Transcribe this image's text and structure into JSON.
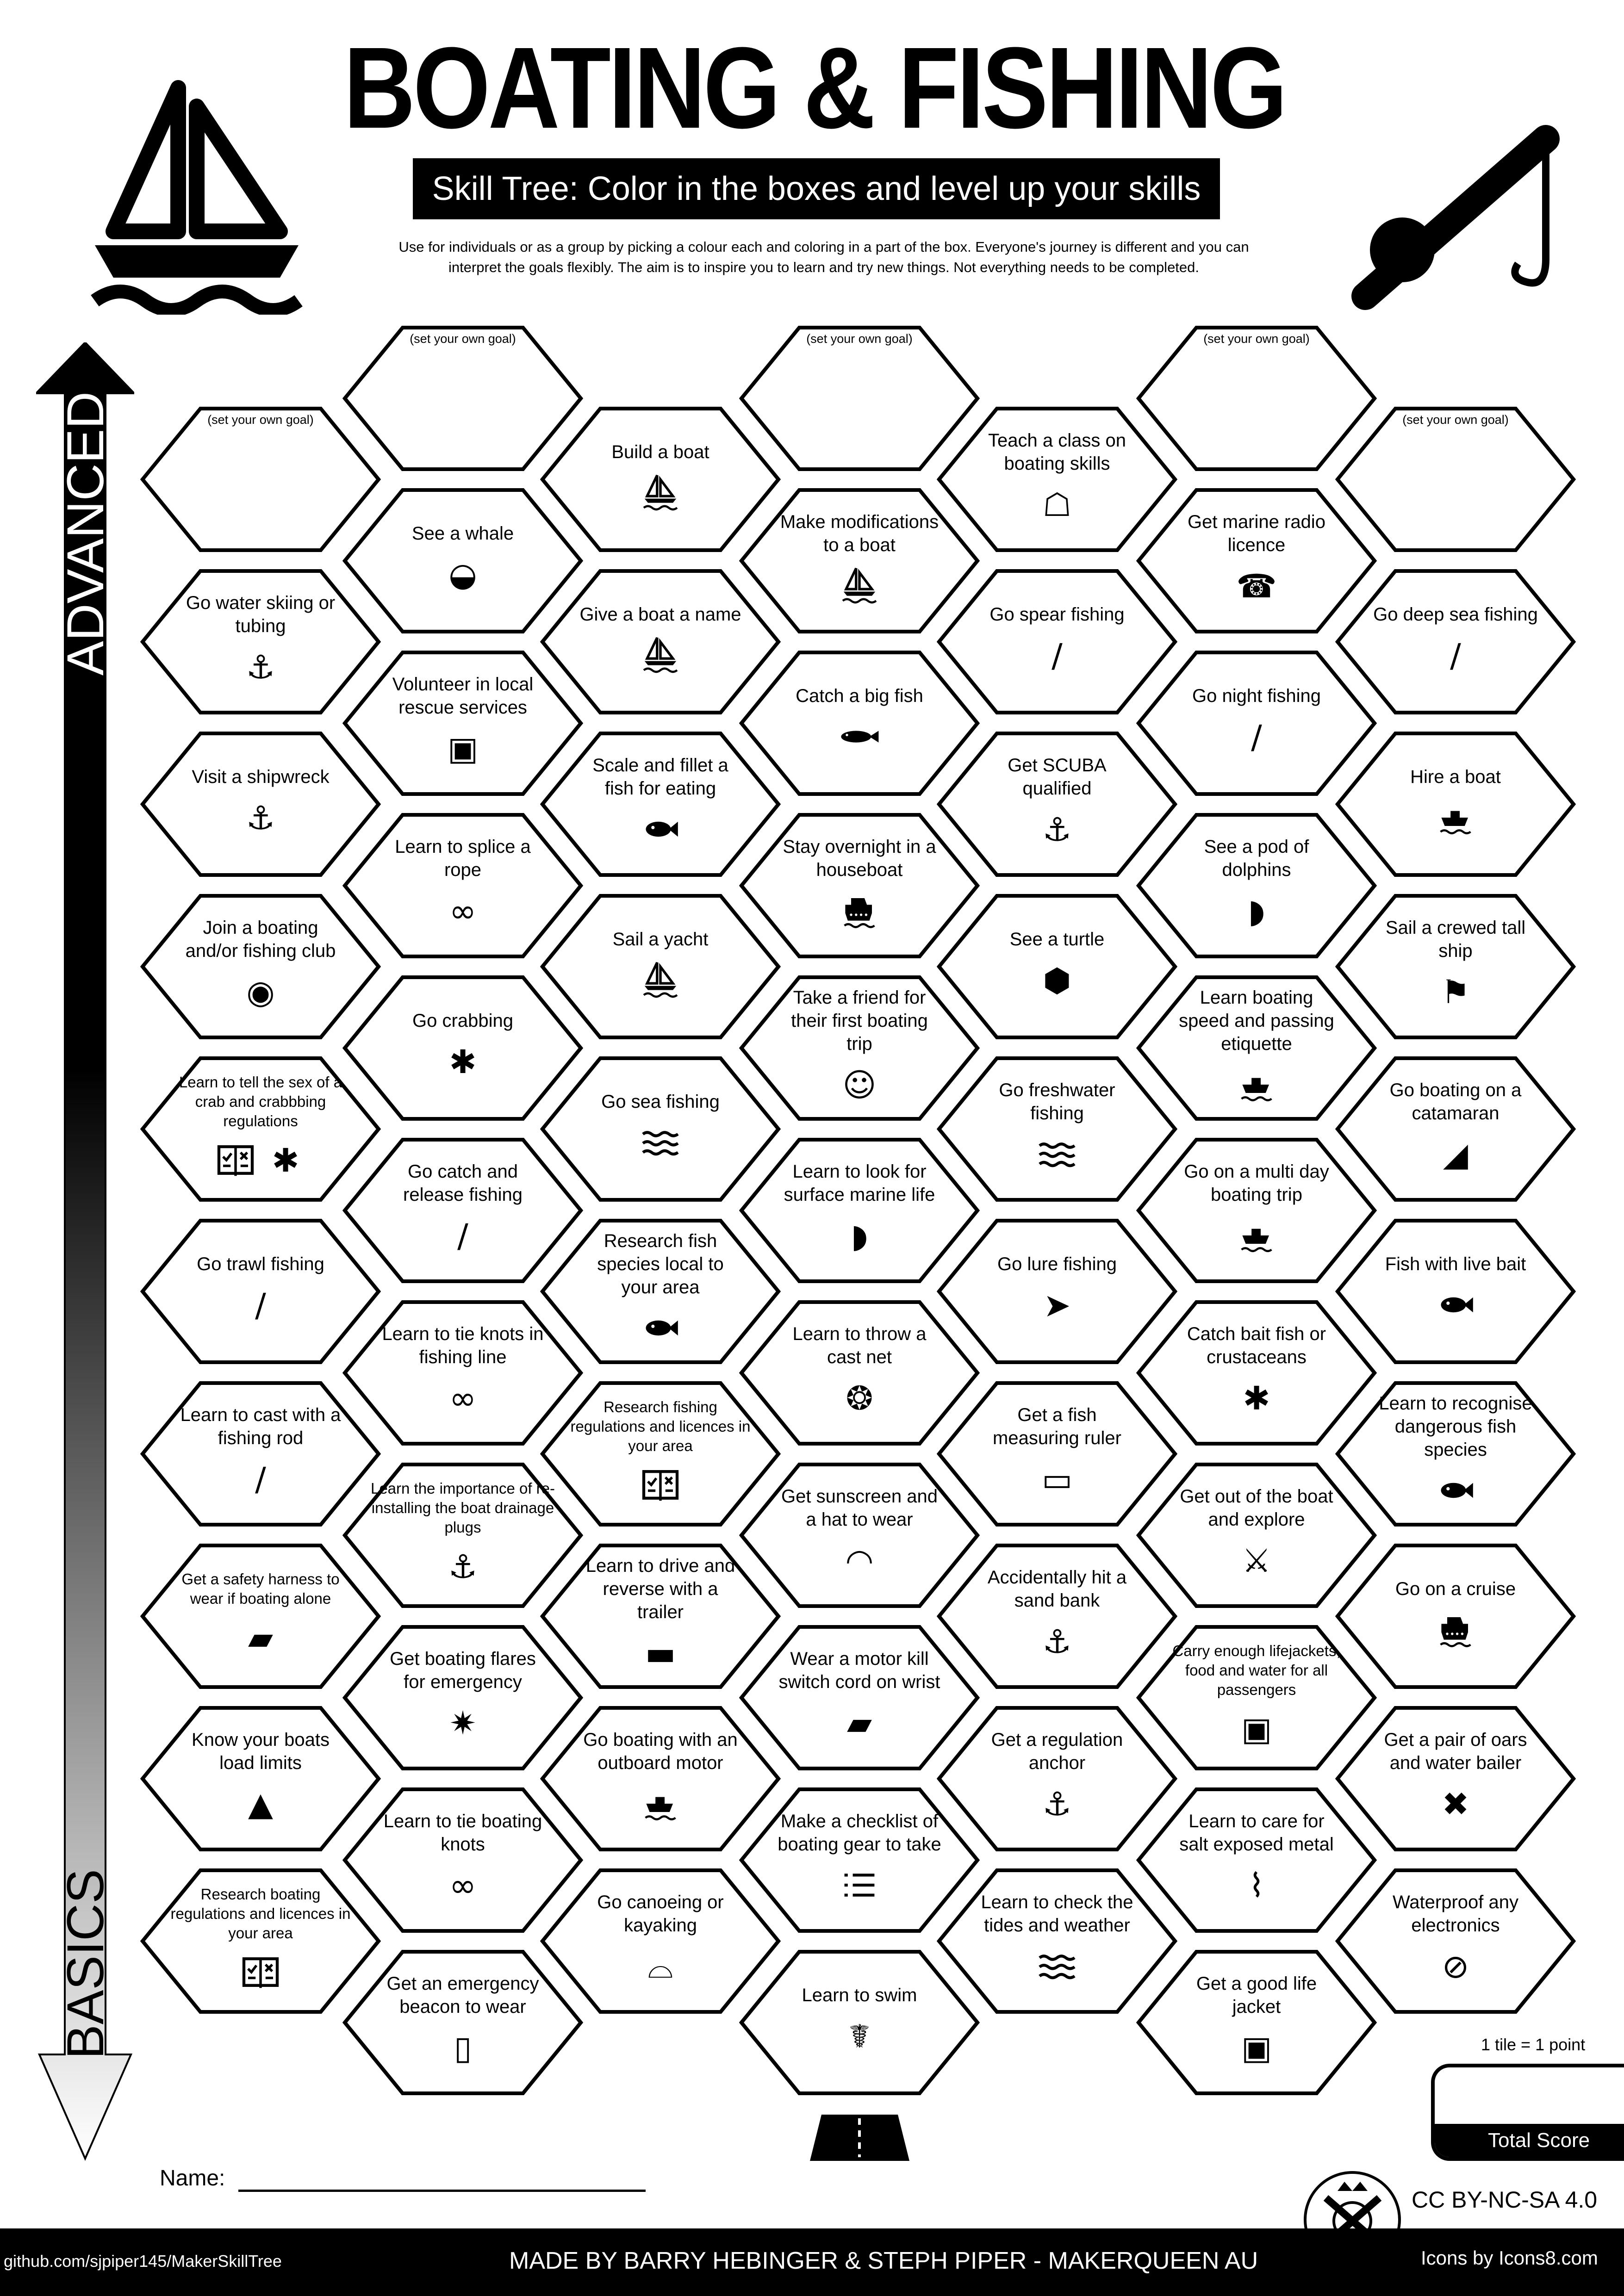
{
  "header": {
    "title": "BOATING & FISHING",
    "subtitle": "Skill Tree:  Color in the boxes and level up your skills",
    "description_line1": "Use for individuals or as a group by picking a colour each and coloring in a part of the box.  Everyone's journey is different and you can",
    "description_line2": "interpret the goals flexibly.  The aim is to inspire you to learn and try new things. Not everything needs to be completed.",
    "left_icon": "sailboat",
    "right_icon": "fishing-rod"
  },
  "scale": {
    "top_label": "ADVANCED",
    "bottom_label": "BASICS"
  },
  "goal_text": "(set your own goal)",
  "hexes": {
    "columns": [
      [
        {
          "goal": true
        },
        {
          "label": "Go water skiing or tubing",
          "icons": [
            "water-ski"
          ]
        },
        {
          "label": "Visit a shipwreck",
          "icons": [
            "shipwreck"
          ]
        },
        {
          "label": "Join a boating and/or fishing club",
          "icons": [
            "map-pin"
          ]
        },
        {
          "label": "Learn to tell the sex of a crab and crabbbing regulations",
          "icons": [
            "book-check",
            "crab"
          ]
        },
        {
          "label": "Go trawl fishing",
          "icons": [
            "fishing-rod"
          ]
        },
        {
          "label": "Learn to cast with a fishing rod",
          "icons": [
            "fishing-rod"
          ]
        },
        {
          "label": "Get a safety harness to wear if boating alone",
          "icons": [
            "jet-ski"
          ]
        },
        {
          "label": "Know your boats load limits",
          "icons": [
            "weight"
          ]
        },
        {
          "label": "Research boating regulations and licences in your area",
          "icons": [
            "book-check"
          ]
        }
      ],
      [
        {
          "goal": true
        },
        {
          "label": "See a whale",
          "icons": [
            "whale"
          ]
        },
        {
          "label": "Volunteer in local rescue services",
          "icons": [
            "life-jacket"
          ]
        },
        {
          "label": "Learn to splice a rope",
          "icons": [
            "rope-knot"
          ]
        },
        {
          "label": "Go crabbing",
          "icons": [
            "crab"
          ]
        },
        {
          "label": "Go catch and release fishing",
          "icons": [
            "fishing-rod"
          ]
        },
        {
          "label": "Learn to tie knots in fishing line",
          "icons": [
            "rope-knot"
          ]
        },
        {
          "label": "Learn the importance of re-installing the boat drainage plugs",
          "icons": [
            "shipwreck"
          ]
        },
        {
          "label": "Get boating flares for emergency",
          "icons": [
            "flare"
          ]
        },
        {
          "label": "Learn to tie boating knots",
          "icons": [
            "rope-knot"
          ]
        },
        {
          "label": "Get an emergency beacon to wear",
          "icons": [
            "beacon"
          ]
        }
      ],
      [
        {
          "label": "Build a boat",
          "icons": [
            "sailboat"
          ]
        },
        {
          "label": "Give a boat a name",
          "icons": [
            "sailboat"
          ]
        },
        {
          "label": "Scale and fillet a fish for eating",
          "icons": [
            "fish"
          ]
        },
        {
          "label": "Sail a yacht",
          "icons": [
            "sailboat"
          ]
        },
        {
          "label": "Go sea fishing",
          "icons": [
            "waves"
          ]
        },
        {
          "label": "Research fish species local to your area",
          "icons": [
            "fish"
          ]
        },
        {
          "label": "Research fishing regulations and licences in your area",
          "icons": [
            "book-check"
          ]
        },
        {
          "label": "Learn to drive and reverse with a trailer",
          "icons": [
            "trailer"
          ]
        },
        {
          "label": "Go boating with an outboard motor",
          "icons": [
            "motorboat"
          ]
        },
        {
          "label": "Go canoeing or kayaking",
          "icons": [
            "canoe"
          ]
        }
      ],
      [
        {
          "goal": true
        },
        {
          "label": "Make modifications to a boat",
          "icons": [
            "sailboat"
          ]
        },
        {
          "label": "Catch a big fish",
          "icons": [
            "big-fish"
          ]
        },
        {
          "label": "Stay overnight in a houseboat",
          "icons": [
            "cruise-ship"
          ]
        },
        {
          "label": "Take a friend for their first boating trip",
          "icons": [
            "friends"
          ]
        },
        {
          "label": "Learn to look for surface marine life",
          "icons": [
            "dolphin"
          ]
        },
        {
          "label": "Learn to throw a cast net",
          "icons": [
            "net"
          ]
        },
        {
          "label": "Get sunscreen and a hat to wear",
          "icons": [
            "hat"
          ]
        },
        {
          "label": "Wear a motor kill switch cord on wrist",
          "icons": [
            "jet-ski"
          ]
        },
        {
          "label": "Make a checklist of boating gear to take",
          "icons": [
            "checklist"
          ]
        },
        {
          "label": "Learn to swim",
          "icons": [
            "swimmer"
          ]
        }
      ],
      [
        {
          "label": "Teach a class on boating skills",
          "icons": [
            "teacher"
          ]
        },
        {
          "label": "Go spear fishing",
          "icons": [
            "spear"
          ]
        },
        {
          "label": "Get SCUBA qualified",
          "icons": [
            "diver"
          ]
        },
        {
          "label": "See a turtle",
          "icons": [
            "turtle"
          ]
        },
        {
          "label": "Go freshwater fishing",
          "icons": [
            "waves"
          ]
        },
        {
          "label": "Go lure fishing",
          "icons": [
            "lure"
          ]
        },
        {
          "label": "Get a fish measuring ruler",
          "icons": [
            "ruler"
          ]
        },
        {
          "label": "Accidentally hit a sand bank",
          "icons": [
            "shipwreck"
          ]
        },
        {
          "label": "Get a regulation anchor",
          "icons": [
            "anchor"
          ]
        },
        {
          "label": "Learn to check the tides and weather",
          "icons": [
            "waves"
          ]
        }
      ],
      [
        {
          "goal": true
        },
        {
          "label": "Get marine radio licence",
          "icons": [
            "radio"
          ]
        },
        {
          "label": "Go night fishing",
          "icons": [
            "fishing-rod"
          ]
        },
        {
          "label": "See a pod of dolphins",
          "icons": [
            "dolphin"
          ]
        },
        {
          "label": "Learn boating speed and passing etiquette",
          "icons": [
            "motorboat"
          ]
        },
        {
          "label": "Go on a multi day boating trip",
          "icons": [
            "motorboat"
          ]
        },
        {
          "label": "Catch bait fish or crustaceans",
          "icons": [
            "crab"
          ]
        },
        {
          "label": "Get out of the boat and explore",
          "icons": [
            "hiker"
          ]
        },
        {
          "label": "Carry enough lifejackets, food and water for all passengers",
          "icons": [
            "life-jacket"
          ]
        },
        {
          "label": "Learn to care for salt exposed metal",
          "icons": [
            "hose"
          ]
        },
        {
          "label": "Get a good life jacket",
          "icons": [
            "life-jacket"
          ]
        }
      ],
      [
        {
          "goal": true
        },
        {
          "label": "Go deep sea fishing",
          "icons": [
            "fishing-rod"
          ]
        },
        {
          "label": "Hire a boat",
          "icons": [
            "motorboat"
          ]
        },
        {
          "label": "Sail a crewed tall ship",
          "icons": [
            "tall-ship"
          ]
        },
        {
          "label": "Go boating on a catamaran",
          "icons": [
            "catamaran"
          ]
        },
        {
          "label": "Fish with live bait",
          "icons": [
            "fish"
          ]
        },
        {
          "label": "Learn to recognise dangerous fish species",
          "icons": [
            "fish"
          ]
        },
        {
          "label": "Go on a cruise",
          "icons": [
            "cruise-ship"
          ]
        },
        {
          "label": "Get a pair of oars and water bailer",
          "icons": [
            "oars"
          ]
        },
        {
          "label": "Waterproof any electronics",
          "icons": [
            "no-water"
          ]
        }
      ]
    ]
  },
  "score": {
    "note": "1 tile = 1 point",
    "label": "Total Score",
    "value": ""
  },
  "name_label": "Name:",
  "license": "CC BY-NC-SA 4.0",
  "footer": {
    "github": "github.com/sjpiper145/MakerSkillTree",
    "credits": "MADE BY BARRY HEBINGER & STEPH PIPER  -  MAKERQUEEN AU",
    "icons_credit": "Icons by Icons8.com"
  },
  "colors": {
    "ink": "#000000",
    "paper": "#ffffff"
  }
}
